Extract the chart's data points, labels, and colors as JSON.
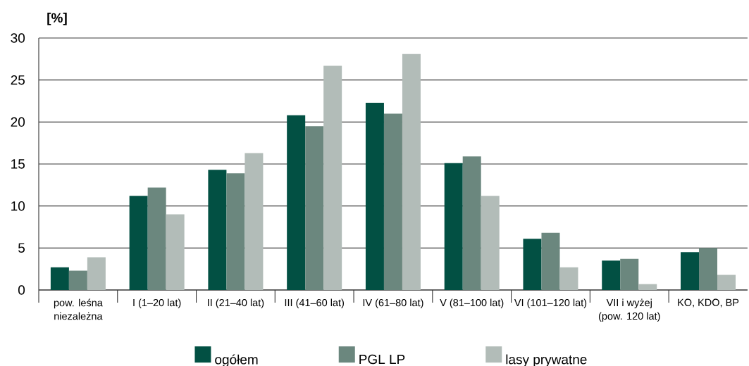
{
  "chart_data": {
    "type": "bar",
    "ylabel": "[%]",
    "categories": [
      "pow. leśna niezależna",
      "I (1–20 lat)",
      "II (21–40 lat)",
      "III (41–60 lat)",
      "IV (61–80 lat)",
      "V (81–100 lat)",
      "VI (101–120 lat)",
      "VII i wyżej (pow. 120 lat)",
      "KO, KDO, BP"
    ],
    "series": [
      {
        "name": "ogółem",
        "color": "#025043",
        "values": [
          2.7,
          11.2,
          14.3,
          20.8,
          22.3,
          15.1,
          6.1,
          3.5,
          4.5
        ]
      },
      {
        "name": "PGL LP",
        "color": "#6b877e",
        "values": [
          2.3,
          12.2,
          13.9,
          19.5,
          21.0,
          15.9,
          6.8,
          3.7,
          5.0
        ]
      },
      {
        "name": "lasy prywatne",
        "color": "#b2bcb8",
        "values": [
          3.9,
          9.0,
          16.3,
          26.7,
          28.1,
          11.2,
          2.7,
          0.7,
          1.8
        ]
      }
    ],
    "ylim": [
      0,
      30
    ],
    "yticks": [
      0,
      5,
      10,
      15,
      20,
      25,
      30
    ],
    "grid": "y",
    "legend": "bottom"
  }
}
